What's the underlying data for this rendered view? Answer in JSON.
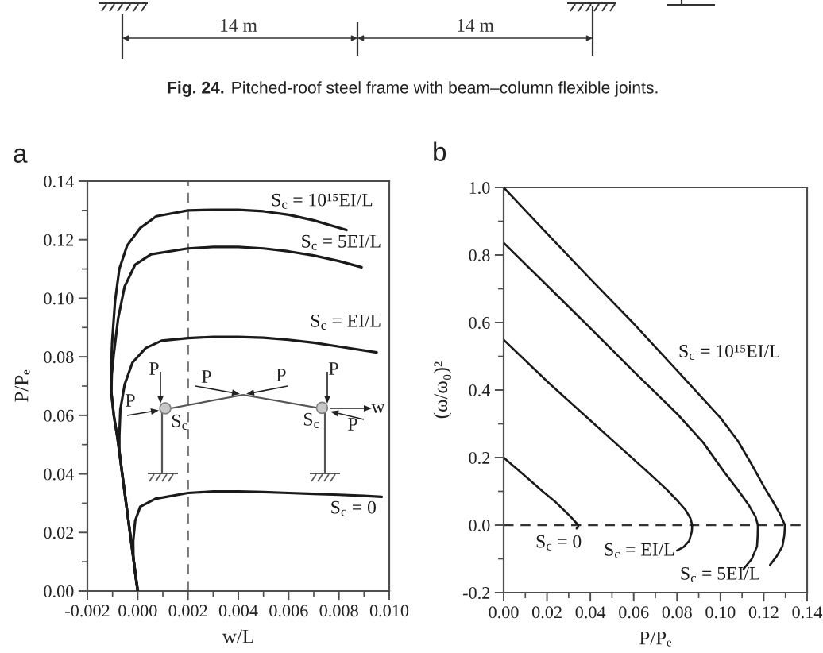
{
  "chart_data": [
    {
      "type": "other",
      "annotations": [
        "14 m",
        "14 m",
        "Fig. 24.",
        "Pitched-roof steel frame with beam–column flexible joints."
      ]
    },
    {
      "type": "line",
      "title": "a",
      "xlabel": "w/L",
      "ylabel": "P/Pₑ",
      "xlim": [
        -0.002,
        0.01
      ],
      "ylim": [
        0,
        0.14
      ],
      "xticks": [
        {
          "value": -0.002,
          "label": "-0.002"
        },
        {
          "value": -0.001,
          "label": null
        },
        {
          "value": 0,
          "label": "0.000"
        },
        {
          "value": 0.001,
          "label": null
        },
        {
          "value": 0.002,
          "label": "0.002"
        },
        {
          "value": 0.003,
          "label": null
        },
        {
          "value": 0.004,
          "label": "0.004"
        },
        {
          "value": 0.005,
          "label": null
        },
        {
          "value": 0.006,
          "label": "0.006"
        },
        {
          "value": 0.007,
          "label": null
        },
        {
          "value": 0.008,
          "label": "0.008"
        },
        {
          "value": 0.009,
          "label": null
        },
        {
          "value": 0.01,
          "label": "0.010"
        }
      ],
      "yticks": [
        {
          "value": 0,
          "label": "0.00"
        },
        {
          "value": 0.01,
          "label": null
        },
        {
          "value": 0.02,
          "label": "0.02"
        },
        {
          "value": 0.03,
          "label": null
        },
        {
          "value": 0.04,
          "label": "0.04"
        },
        {
          "value": 0.05,
          "label": null
        },
        {
          "value": 0.06,
          "label": "0.06"
        },
        {
          "value": 0.07,
          "label": null
        },
        {
          "value": 0.08,
          "label": "0.08"
        },
        {
          "value": 0.09,
          "label": null
        },
        {
          "value": 0.1,
          "label": "0.10"
        },
        {
          "value": 0.11,
          "label": null
        },
        {
          "value": 0.12,
          "label": "0.12"
        },
        {
          "value": 0.13,
          "label": null
        },
        {
          "value": 0.14,
          "label": "0.14"
        }
      ],
      "series": [
        {
          "name": "S$_{c}$ = 10¹⁵EI/L",
          "color": "#1a1a1a",
          "x": [
            0.0,
            -0.0002,
            -0.0004,
            -0.0006,
            -0.0008,
            -0.00095,
            -0.00105,
            -0.00105,
            -0.00101,
            -0.0009,
            -0.00073,
            -0.00042,
            0.0001,
            0.00074,
            0.002,
            0.003,
            0.004,
            0.005,
            0.006,
            0.007,
            0.0083
          ],
          "values": [
            0.0,
            0.013,
            0.026,
            0.039,
            0.052,
            0.06,
            0.068,
            0.078,
            0.086,
            0.099,
            0.11,
            0.118,
            0.124,
            0.128,
            0.13,
            0.1302,
            0.1302,
            0.1297,
            0.1285,
            0.1266,
            0.1233
          ]
        },
        {
          "name": "S$_{c}$ = 5EI/L",
          "color": "#1a1a1a",
          "x": [
            0.0,
            -0.0002,
            -0.0004,
            -0.0006,
            -0.0008,
            -0.00095,
            -0.00105,
            -0.00103,
            -0.00095,
            -0.00078,
            -0.00052,
            -0.0001,
            0.00053,
            0.002,
            0.003,
            0.004,
            0.005,
            0.006,
            0.007,
            0.008,
            0.0089
          ],
          "values": [
            0.0,
            0.013,
            0.026,
            0.039,
            0.052,
            0.06,
            0.068,
            0.074,
            0.081,
            0.093,
            0.104,
            0.1115,
            0.115,
            0.117,
            0.1175,
            0.1175,
            0.117,
            0.116,
            0.1146,
            0.1127,
            0.1106
          ]
        },
        {
          "name": "S$_{c}$ = EI/L",
          "color": "#1a1a1a",
          "x": [
            0.0,
            -0.0002,
            -0.0004,
            -0.0006,
            -0.00073,
            -0.00073,
            -0.00069,
            -0.00052,
            -0.00021,
            0.00032,
            0.00095,
            0.002,
            0.003,
            0.004,
            0.005,
            0.006,
            0.007,
            0.008,
            0.0095
          ],
          "values": [
            0.0,
            0.013,
            0.026,
            0.039,
            0.048,
            0.053,
            0.062,
            0.0705,
            0.078,
            0.083,
            0.0855,
            0.0864,
            0.0868,
            0.0868,
            0.0865,
            0.0858,
            0.0848,
            0.0835,
            0.0815
          ]
        },
        {
          "name": "S$_{c}$ = 0",
          "color": "#1a1a1a",
          "x": [
            0.0,
            -0.0001,
            -0.00017,
            -0.00018,
            -0.0001,
            0.0001,
            0.0007,
            0.002,
            0.003,
            0.004,
            0.005,
            0.006,
            0.007,
            0.008,
            0.009,
            0.0097
          ],
          "values": [
            0.0,
            0.006,
            0.0115,
            0.017,
            0.024,
            0.0288,
            0.0315,
            0.0335,
            0.034,
            0.034,
            0.0338,
            0.0335,
            0.0332,
            0.0329,
            0.0325,
            0.0322
          ]
        }
      ],
      "ref_lines": [
        {
          "axis": "x",
          "value": 0.002,
          "color": "#777777",
          "line_style": "dashed"
        }
      ],
      "annotations": [
        "P",
        "P",
        "P",
        "P",
        "P",
        "P",
        "S$_{c}$",
        "S$_{c}$",
        "w"
      ]
    },
    {
      "type": "line",
      "title": "b",
      "xlabel": "P/Pₑ",
      "ylabel": "(ω/ω₀)²",
      "xlim": [
        0,
        0.14
      ],
      "ylim": [
        -0.2,
        1.0
      ],
      "xticks": [
        {
          "value": 0,
          "label": "0.00"
        },
        {
          "value": 0.01,
          "label": null
        },
        {
          "value": 0.02,
          "label": "0.02"
        },
        {
          "value": 0.03,
          "label": null
        },
        {
          "value": 0.04,
          "label": "0.04"
        },
        {
          "value": 0.05,
          "label": null
        },
        {
          "value": 0.06,
          "label": "0.06"
        },
        {
          "value": 0.07,
          "label": null
        },
        {
          "value": 0.08,
          "label": "0.08"
        },
        {
          "value": 0.09,
          "label": null
        },
        {
          "value": 0.1,
          "label": "0.10"
        },
        {
          "value": 0.11,
          "label": null
        },
        {
          "value": 0.12,
          "label": "0.12"
        },
        {
          "value": 0.13,
          "label": null
        },
        {
          "value": 0.14,
          "label": "0.14"
        }
      ],
      "yticks": [
        {
          "value": -0.2,
          "label": "-0.2"
        },
        {
          "value": -0.1,
          "label": null
        },
        {
          "value": 0,
          "label": "0.0"
        },
        {
          "value": 0.1,
          "label": null
        },
        {
          "value": 0.2,
          "label": "0.2"
        },
        {
          "value": 0.3,
          "label": null
        },
        {
          "value": 0.4,
          "label": "0.4"
        },
        {
          "value": 0.5,
          "label": null
        },
        {
          "value": 0.6,
          "label": "0.6"
        },
        {
          "value": 0.7,
          "label": null
        },
        {
          "value": 0.8,
          "label": "0.8"
        },
        {
          "value": 0.9,
          "label": null
        },
        {
          "value": 1.0,
          "label": "1.0"
        }
      ],
      "series": [
        {
          "name": "S$_{c}$ = 10¹⁵EI/L",
          "color": "#1a1a1a",
          "x": [
            0.0,
            0.02,
            0.04,
            0.06,
            0.08,
            0.1,
            0.108,
            0.1144,
            0.12,
            0.1242,
            0.1275,
            0.1298,
            0.1295,
            0.1286,
            0.126,
            0.1229
          ],
          "values": [
            1.0,
            0.864,
            0.729,
            0.597,
            0.458,
            0.318,
            0.25,
            0.18,
            0.115,
            0.07,
            0.033,
            0.0,
            -0.03,
            -0.063,
            -0.092,
            -0.118
          ]
        },
        {
          "name": "S$_{c}$ = 5EI/L",
          "color": "#1a1a1a",
          "x": [
            0.0,
            0.02,
            0.0374,
            0.06,
            0.08,
            0.092,
            0.102,
            0.108,
            0.1132,
            0.1162,
            0.1173,
            0.1172,
            0.1169,
            0.1145,
            0.1107
          ],
          "values": [
            0.836,
            0.71,
            0.6,
            0.455,
            0.33,
            0.245,
            0.155,
            0.105,
            0.058,
            0.025,
            0.0,
            -0.03,
            -0.063,
            -0.1,
            -0.13
          ]
        },
        {
          "name": "S$_{c}$ = EI/L",
          "color": "#1a1a1a",
          "x": [
            0.0,
            0.021,
            0.04,
            0.0582,
            0.066,
            0.0753,
            0.0805,
            0.0839,
            0.0862,
            0.087,
            0.0868,
            0.0856,
            0.083,
            0.08
          ],
          "values": [
            0.549,
            0.42,
            0.31,
            0.205,
            0.16,
            0.105,
            0.07,
            0.045,
            0.02,
            0.0,
            -0.02,
            -0.047,
            -0.065,
            -0.075
          ]
        },
        {
          "name": "S$_{c}$ = 0",
          "color": "#1a1a1a",
          "x": [
            0.0,
            0.0093,
            0.018,
            0.024,
            0.0285,
            0.0313,
            0.033,
            0.0345,
            0.0343,
            0.0337
          ],
          "values": [
            0.2,
            0.149,
            0.1,
            0.068,
            0.04,
            0.022,
            0.01,
            0.0,
            -0.006,
            -0.01
          ]
        }
      ],
      "ref_lines": [
        {
          "axis": "y",
          "value": 0,
          "color": "#333333",
          "line_style": "dashed"
        }
      ]
    }
  ]
}
